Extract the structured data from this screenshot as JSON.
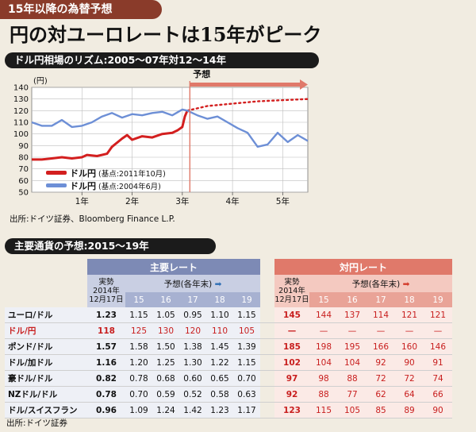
{
  "header": {
    "tag": "15年以降の為替予想",
    "headline": "円の対ユーロレートは15年がピーク"
  },
  "colors": {
    "usdjpy": "#d31f1f",
    "eurusd": "#6d8fd6",
    "forecast_arrow": "#e0796a",
    "main_header": "#7d8ab5",
    "yen_header": "#e0796a"
  },
  "chart_data": {
    "type": "line",
    "title": "ドル円相場のリズム:2005〜07年対12〜14年",
    "ylabel": "(円)",
    "ylim": [
      50,
      140
    ],
    "yticks": [
      "140",
      "130",
      "120",
      "110",
      "100",
      "90",
      "80",
      "70",
      "60",
      "50"
    ],
    "xlim": [
      0,
      5.5
    ],
    "xticks": [
      {
        "x": 1,
        "label": "1年"
      },
      {
        "x": 2,
        "label": "2年"
      },
      {
        "x": 3,
        "label": "3年"
      },
      {
        "x": 4,
        "label": "4年"
      },
      {
        "x": 5,
        "label": "5年"
      }
    ],
    "grid": true,
    "forecast_label": "予想",
    "forecast_start_x": 3.15,
    "series": [
      {
        "name": "ドル円",
        "note": "(基点:2011年10月)",
        "style": "solid",
        "x": [
          0,
          0.2,
          0.4,
          0.6,
          0.8,
          1.0,
          1.1,
          1.3,
          1.5,
          1.6,
          1.8,
          1.9,
          2.0,
          2.2,
          2.4,
          2.6,
          2.8,
          2.9,
          3.0,
          3.05,
          3.1
        ],
        "y": [
          78,
          78,
          79,
          80,
          79,
          80,
          82,
          81,
          83,
          89,
          96,
          99,
          95,
          98,
          97,
          100,
          101,
          103,
          106,
          115,
          120
        ]
      },
      {
        "name": "予想",
        "style": "dotted",
        "x": [
          3.1,
          3.5,
          4.0,
          4.5,
          5.0,
          5.5
        ],
        "y": [
          120,
          124,
          126,
          128,
          129,
          130
        ]
      },
      {
        "name": "ドル円",
        "note": "(基点:2004年6月)",
        "style": "solid",
        "x": [
          0,
          0.2,
          0.4,
          0.6,
          0.8,
          1.0,
          1.2,
          1.4,
          1.6,
          1.8,
          2.0,
          2.2,
          2.4,
          2.6,
          2.8,
          3.0,
          3.1,
          3.3,
          3.5,
          3.7,
          3.9,
          4.1,
          4.3,
          4.5,
          4.7,
          4.9,
          5.1,
          5.3,
          5.5
        ],
        "y": [
          110,
          107,
          107,
          112,
          106,
          107,
          110,
          115,
          118,
          114,
          117,
          116,
          118,
          119,
          116,
          121,
          120,
          116,
          113,
          115,
          110,
          105,
          101,
          89,
          91,
          101,
          93,
          99,
          94
        ]
      }
    ]
  },
  "chart_source": "出所:ドイツ証券、Bloomberg Finance L.P.",
  "table": {
    "title": "主要通貨の予想:2015〜19年",
    "group_main": "主要レート",
    "group_yen": "対円レート",
    "actual_label": "実勢",
    "actual_date_1": "2014年",
    "actual_date_2": "12月17日",
    "forecast_label": "予想(各年末)",
    "arrow": "➡",
    "years": [
      "15",
      "16",
      "17",
      "18",
      "19"
    ],
    "rows": [
      {
        "label": "ユーロ/ドル",
        "red": false,
        "main": [
          "1.23",
          "1.15",
          "1.05",
          "0.95",
          "1.10",
          "1.15"
        ],
        "yen": [
          "145",
          "144",
          "137",
          "114",
          "121",
          "121"
        ]
      },
      {
        "label": "ドル/円",
        "red": true,
        "main": [
          "118",
          "125",
          "130",
          "120",
          "110",
          "105"
        ],
        "yen": [
          "—",
          "—",
          "—",
          "—",
          "—",
          "—"
        ]
      },
      {
        "label": "ポンド/ドル",
        "red": false,
        "main": [
          "1.57",
          "1.58",
          "1.50",
          "1.38",
          "1.45",
          "1.39"
        ],
        "yen": [
          "185",
          "198",
          "195",
          "166",
          "160",
          "146"
        ]
      },
      {
        "label": "ドル/加ドル",
        "red": false,
        "main": [
          "1.16",
          "1.20",
          "1.25",
          "1.30",
          "1.22",
          "1.15"
        ],
        "yen": [
          "102",
          "104",
          "104",
          "92",
          "90",
          "91"
        ]
      },
      {
        "label": "豪ドル/ドル",
        "red": false,
        "main": [
          "0.82",
          "0.78",
          "0.68",
          "0.60",
          "0.65",
          "0.70"
        ],
        "yen": [
          "97",
          "98",
          "88",
          "72",
          "72",
          "74"
        ]
      },
      {
        "label": "NZドル/ドル",
        "red": false,
        "main": [
          "0.78",
          "0.70",
          "0.59",
          "0.52",
          "0.58",
          "0.63"
        ],
        "yen": [
          "92",
          "88",
          "77",
          "62",
          "64",
          "66"
        ]
      },
      {
        "label": "ドル/スイスフラン",
        "red": false,
        "main": [
          "0.96",
          "1.09",
          "1.24",
          "1.42",
          "1.23",
          "1.17"
        ],
        "yen": [
          "123",
          "115",
          "105",
          "85",
          "89",
          "90"
        ]
      }
    ]
  },
  "table_source": "出所:ドイツ証券"
}
